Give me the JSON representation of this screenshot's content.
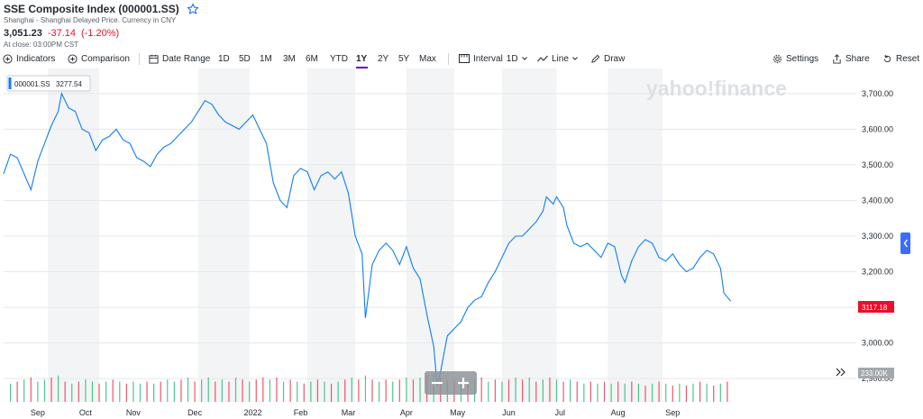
{
  "header": {
    "title": "SSE Composite Index (000001.SS)",
    "subtitle": "Shanghai - Shanghai Delayed Price. Currency in CNY",
    "price": "3,051.23",
    "change": "-37.14",
    "change_pct": "(-1.20%)",
    "close_time": "At close: 03:00PM CST"
  },
  "toolbar": {
    "indicators": "Indicators",
    "comparison": "Comparison",
    "date_range": "Date Range",
    "ranges": [
      "1D",
      "5D",
      "1M",
      "3M",
      "6M",
      "YTD",
      "1Y",
      "2Y",
      "5Y",
      "Max"
    ],
    "active_range": "1Y",
    "interval_label": "Interval",
    "interval_value": "1D",
    "chart_type": "Line",
    "draw": "Draw",
    "settings": "Settings",
    "share": "Share",
    "reset": "Reset"
  },
  "watermark": "yahoo!finance",
  "legend": {
    "symbol": "000001.SS",
    "value": "3277.54"
  },
  "price_badge": "3117.18",
  "volume_badge": "233.00K",
  "colors": {
    "line": "#0f7ef0",
    "down": "#eb0f29",
    "up": "#00b061",
    "badge_red": "#eb0f29",
    "badge_gray": "#a4a9ad",
    "accent": "#6001d2"
  },
  "chart_data": {
    "type": "line",
    "title": "SSE Composite Index (000001.SS)",
    "ylim": [
      2870,
      3735
    ],
    "y_ticks": [
      2900,
      3000,
      3100,
      3200,
      3300,
      3400,
      3500,
      3600,
      3700
    ],
    "y_tick_labels": [
      "2,900.00",
      "3,000.00",
      "3,100.00",
      "3,200.00",
      "3,300.00",
      "3,400.00",
      "3,500.00",
      "3,600.00",
      "3,700.00"
    ],
    "x_labels": [
      "Sep",
      "Oct",
      "Nov",
      "Dec",
      "2022",
      "Feb",
      "Mar",
      "Apr",
      "May",
      "Jun",
      "Jul",
      "Aug",
      "Sep"
    ],
    "trading_days": 250,
    "x_label_day_index": [
      10,
      24,
      38,
      56,
      73,
      87,
      101,
      118,
      133,
      148,
      163,
      180,
      196
    ],
    "shaded_months": [
      [
        13,
        28
      ],
      [
        57,
        72
      ],
      [
        89,
        103
      ],
      [
        118,
        132
      ],
      [
        146,
        162
      ],
      [
        177,
        193
      ]
    ],
    "series": [
      {
        "name": "000001.SS",
        "points": [
          [
            0,
            3475
          ],
          [
            2,
            3530
          ],
          [
            4,
            3520
          ],
          [
            6,
            3475
          ],
          [
            8,
            3430
          ],
          [
            10,
            3510
          ],
          [
            12,
            3560
          ],
          [
            14,
            3610
          ],
          [
            16,
            3650
          ],
          [
            17,
            3700
          ],
          [
            18,
            3680
          ],
          [
            19,
            3660
          ],
          [
            21,
            3650
          ],
          [
            23,
            3600
          ],
          [
            25,
            3590
          ],
          [
            27,
            3540
          ],
          [
            29,
            3570
          ],
          [
            31,
            3580
          ],
          [
            33,
            3600
          ],
          [
            35,
            3570
          ],
          [
            37,
            3560
          ],
          [
            39,
            3520
          ],
          [
            41,
            3510
          ],
          [
            43,
            3495
          ],
          [
            45,
            3530
          ],
          [
            47,
            3550
          ],
          [
            49,
            3560
          ],
          [
            51,
            3580
          ],
          [
            53,
            3600
          ],
          [
            55,
            3620
          ],
          [
            57,
            3650
          ],
          [
            59,
            3680
          ],
          [
            61,
            3670
          ],
          [
            63,
            3640
          ],
          [
            65,
            3620
          ],
          [
            67,
            3610
          ],
          [
            69,
            3600
          ],
          [
            71,
            3620
          ],
          [
            73,
            3640
          ],
          [
            75,
            3600
          ],
          [
            77,
            3560
          ],
          [
            79,
            3450
          ],
          [
            81,
            3400
          ],
          [
            83,
            3380
          ],
          [
            85,
            3470
          ],
          [
            87,
            3490
          ],
          [
            89,
            3480
          ],
          [
            91,
            3430
          ],
          [
            93,
            3470
          ],
          [
            95,
            3480
          ],
          [
            97,
            3460
          ],
          [
            99,
            3480
          ],
          [
            101,
            3420
          ],
          [
            103,
            3300
          ],
          [
            105,
            3250
          ],
          [
            106,
            3070
          ],
          [
            108,
            3220
          ],
          [
            110,
            3260
          ],
          [
            112,
            3280
          ],
          [
            114,
            3260
          ],
          [
            116,
            3220
          ],
          [
            118,
            3270
          ],
          [
            120,
            3210
          ],
          [
            122,
            3180
          ],
          [
            124,
            3080
          ],
          [
            126,
            2990
          ],
          [
            127,
            2880
          ],
          [
            128,
            2920
          ],
          [
            130,
            3020
          ],
          [
            132,
            3040
          ],
          [
            134,
            3060
          ],
          [
            136,
            3100
          ],
          [
            138,
            3120
          ],
          [
            140,
            3130
          ],
          [
            142,
            3170
          ],
          [
            144,
            3200
          ],
          [
            146,
            3240
          ],
          [
            148,
            3280
          ],
          [
            150,
            3300
          ],
          [
            152,
            3300
          ],
          [
            154,
            3320
          ],
          [
            156,
            3340
          ],
          [
            158,
            3370
          ],
          [
            159,
            3410
          ],
          [
            161,
            3390
          ],
          [
            162,
            3410
          ],
          [
            164,
            3380
          ],
          [
            165,
            3330
          ],
          [
            167,
            3280
          ],
          [
            169,
            3270
          ],
          [
            171,
            3280
          ],
          [
            173,
            3260
          ],
          [
            175,
            3240
          ],
          [
            177,
            3280
          ],
          [
            179,
            3270
          ],
          [
            181,
            3190
          ],
          [
            182,
            3170
          ],
          [
            184,
            3230
          ],
          [
            186,
            3270
          ],
          [
            188,
            3290
          ],
          [
            190,
            3280
          ],
          [
            192,
            3240
          ],
          [
            194,
            3230
          ],
          [
            196,
            3250
          ],
          [
            198,
            3220
          ],
          [
            200,
            3200
          ],
          [
            202,
            3210
          ],
          [
            204,
            3240
          ],
          [
            206,
            3260
          ],
          [
            208,
            3250
          ],
          [
            210,
            3210
          ],
          [
            211,
            3140
          ],
          [
            213,
            3117
          ]
        ]
      }
    ],
    "volume": {
      "ylim_label": "233.00K",
      "bars": [
        [
          2,
          0.45,
          "u"
        ],
        [
          4,
          0.5,
          "d"
        ],
        [
          6,
          0.55,
          "u"
        ],
        [
          8,
          0.6,
          "d"
        ],
        [
          10,
          0.5,
          "u"
        ],
        [
          12,
          0.55,
          "u"
        ],
        [
          14,
          0.6,
          "d"
        ],
        [
          16,
          0.65,
          "u"
        ],
        [
          18,
          0.5,
          "d"
        ],
        [
          20,
          0.45,
          "u"
        ],
        [
          22,
          0.5,
          "d"
        ],
        [
          24,
          0.55,
          "u"
        ],
        [
          26,
          0.5,
          "u"
        ],
        [
          28,
          0.45,
          "d"
        ],
        [
          30,
          0.5,
          "u"
        ],
        [
          32,
          0.55,
          "d"
        ],
        [
          34,
          0.5,
          "u"
        ],
        [
          36,
          0.45,
          "d"
        ],
        [
          38,
          0.5,
          "u"
        ],
        [
          40,
          0.45,
          "u"
        ],
        [
          42,
          0.5,
          "d"
        ],
        [
          44,
          0.45,
          "u"
        ],
        [
          46,
          0.5,
          "d"
        ],
        [
          48,
          0.55,
          "u"
        ],
        [
          50,
          0.5,
          "u"
        ],
        [
          52,
          0.55,
          "d"
        ],
        [
          54,
          0.6,
          "u"
        ],
        [
          56,
          0.5,
          "d"
        ],
        [
          58,
          0.55,
          "u"
        ],
        [
          60,
          0.6,
          "u"
        ],
        [
          62,
          0.5,
          "d"
        ],
        [
          64,
          0.55,
          "u"
        ],
        [
          66,
          0.5,
          "d"
        ],
        [
          68,
          0.6,
          "u"
        ],
        [
          70,
          0.55,
          "d"
        ],
        [
          72,
          0.5,
          "u"
        ],
        [
          74,
          0.55,
          "d"
        ],
        [
          76,
          0.6,
          "d"
        ],
        [
          78,
          0.55,
          "u"
        ],
        [
          80,
          0.6,
          "d"
        ],
        [
          82,
          0.5,
          "u"
        ],
        [
          84,
          0.55,
          "d"
        ],
        [
          86,
          0.5,
          "u"
        ],
        [
          88,
          0.45,
          "d"
        ],
        [
          90,
          0.5,
          "u"
        ],
        [
          92,
          0.55,
          "d"
        ],
        [
          94,
          0.5,
          "u"
        ],
        [
          96,
          0.45,
          "d"
        ],
        [
          98,
          0.5,
          "u"
        ],
        [
          100,
          0.55,
          "d"
        ],
        [
          102,
          0.6,
          "u"
        ],
        [
          104,
          0.55,
          "d"
        ],
        [
          106,
          0.65,
          "u"
        ],
        [
          108,
          0.55,
          "d"
        ],
        [
          110,
          0.5,
          "u"
        ],
        [
          112,
          0.55,
          "d"
        ],
        [
          114,
          0.5,
          "u"
        ],
        [
          116,
          0.55,
          "d"
        ],
        [
          118,
          0.6,
          "u"
        ],
        [
          120,
          0.55,
          "d"
        ],
        [
          122,
          0.6,
          "u"
        ],
        [
          124,
          0.65,
          "d"
        ],
        [
          126,
          0.7,
          "u"
        ],
        [
          128,
          0.6,
          "d"
        ],
        [
          130,
          0.55,
          "u"
        ],
        [
          132,
          0.5,
          "d"
        ],
        [
          134,
          0.55,
          "u"
        ],
        [
          136,
          0.5,
          "d"
        ],
        [
          138,
          0.55,
          "u"
        ],
        [
          140,
          0.6,
          "d"
        ],
        [
          142,
          0.5,
          "u"
        ],
        [
          144,
          0.55,
          "d"
        ],
        [
          146,
          0.5,
          "u"
        ],
        [
          148,
          0.55,
          "d"
        ],
        [
          150,
          0.6,
          "u"
        ],
        [
          152,
          0.55,
          "d"
        ],
        [
          154,
          0.6,
          "u"
        ],
        [
          156,
          0.5,
          "d"
        ],
        [
          158,
          0.55,
          "u"
        ],
        [
          160,
          0.6,
          "d"
        ],
        [
          162,
          0.55,
          "u"
        ],
        [
          164,
          0.5,
          "d"
        ],
        [
          166,
          0.55,
          "u"
        ],
        [
          168,
          0.5,
          "d"
        ],
        [
          170,
          0.45,
          "u"
        ],
        [
          172,
          0.5,
          "d"
        ],
        [
          174,
          0.45,
          "u"
        ],
        [
          176,
          0.5,
          "d"
        ],
        [
          178,
          0.45,
          "u"
        ],
        [
          180,
          0.5,
          "d"
        ],
        [
          182,
          0.45,
          "u"
        ],
        [
          184,
          0.5,
          "d"
        ],
        [
          186,
          0.45,
          "u"
        ],
        [
          188,
          0.4,
          "d"
        ],
        [
          190,
          0.45,
          "u"
        ],
        [
          192,
          0.5,
          "d"
        ],
        [
          194,
          0.45,
          "u"
        ],
        [
          196,
          0.4,
          "d"
        ],
        [
          198,
          0.45,
          "u"
        ],
        [
          200,
          0.4,
          "d"
        ],
        [
          202,
          0.45,
          "u"
        ],
        [
          204,
          0.5,
          "d"
        ],
        [
          206,
          0.45,
          "u"
        ],
        [
          208,
          0.4,
          "d"
        ],
        [
          210,
          0.45,
          "u"
        ],
        [
          212,
          0.5,
          "d"
        ]
      ]
    },
    "grid": true,
    "legend_position": "top-left"
  }
}
